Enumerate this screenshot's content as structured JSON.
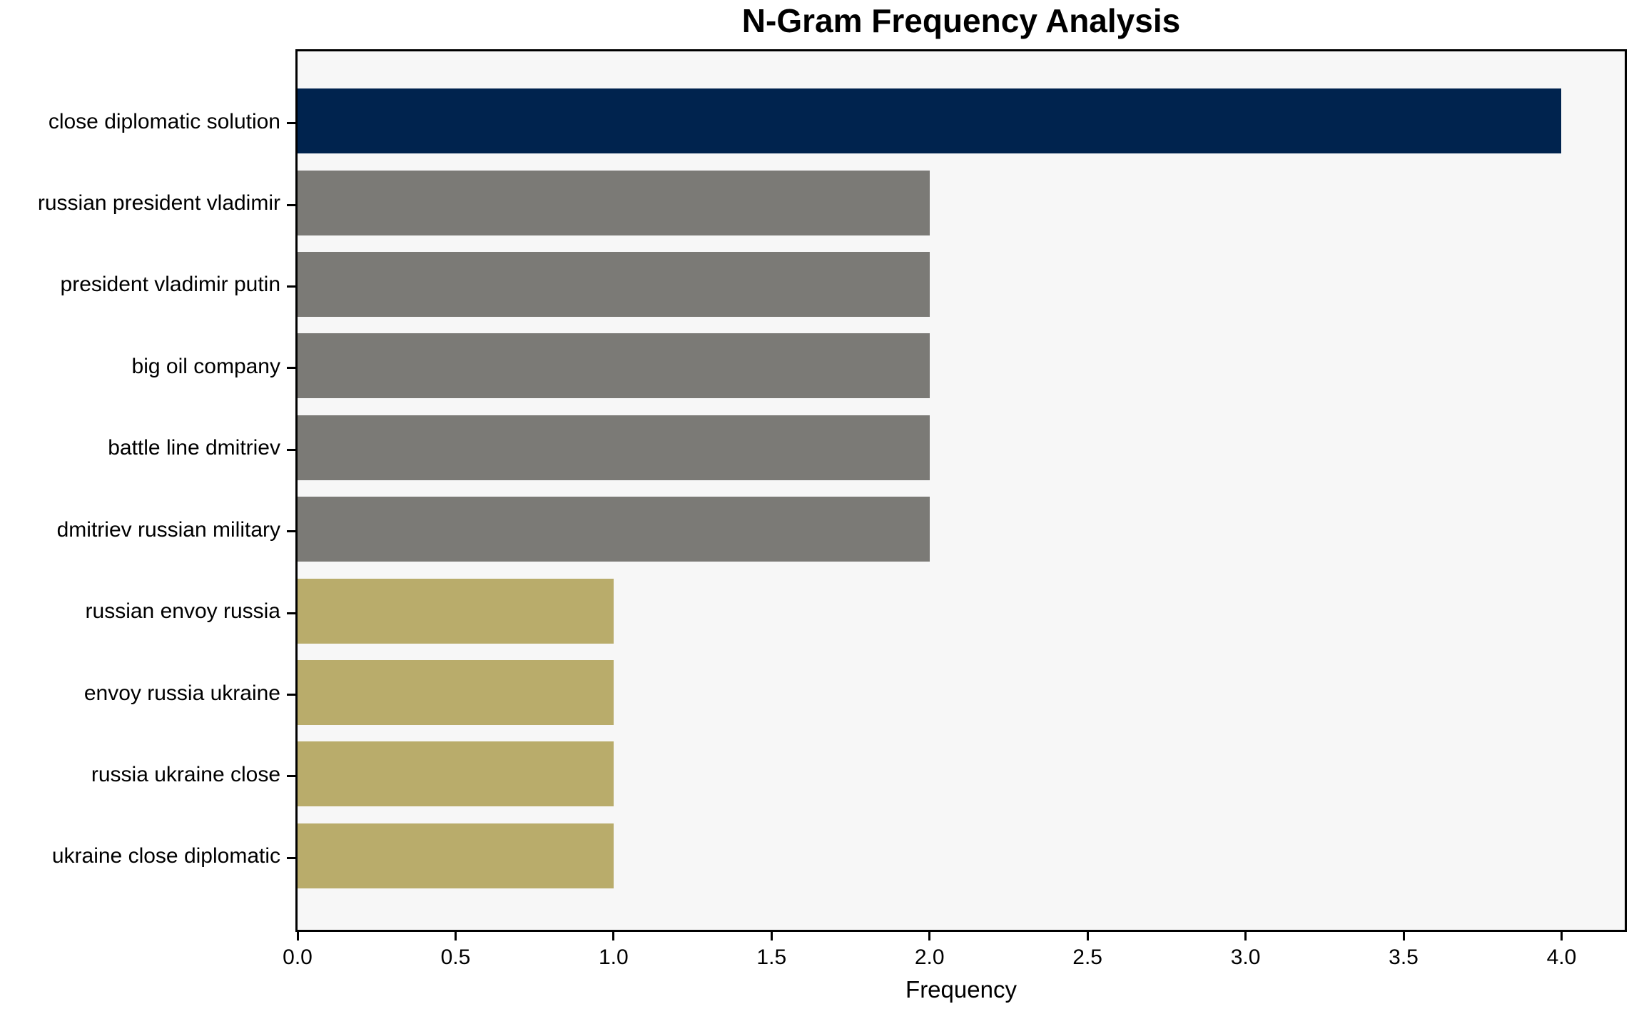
{
  "chart_data": {
    "type": "bar",
    "orientation": "horizontal",
    "title": "N-Gram Frequency Analysis",
    "xlabel": "Frequency",
    "ylabel": "",
    "categories": [
      "close diplomatic solution",
      "russian president vladimir",
      "president vladimir putin",
      "big oil company",
      "battle line dmitriev",
      "dmitriev russian military",
      "russian envoy russia",
      "envoy russia ukraine",
      "russia ukraine close",
      "ukraine close diplomatic"
    ],
    "values": [
      4,
      2,
      2,
      2,
      2,
      2,
      1,
      1,
      1,
      1
    ],
    "bar_colors": [
      "#00234E",
      "#7B7A76",
      "#7B7A76",
      "#7B7A76",
      "#7B7A76",
      "#7B7A76",
      "#B9AC6B",
      "#B9AC6B",
      "#B9AC6B",
      "#B9AC6B"
    ],
    "xlim": [
      0,
      4.2
    ],
    "xticks": [
      0,
      0.5,
      1.0,
      1.5,
      2.0,
      2.5,
      3.0,
      3.5,
      4.0
    ],
    "xtick_labels": [
      "0.0",
      "0.5",
      "1.0",
      "1.5",
      "2.0",
      "2.5",
      "3.0",
      "3.5",
      "4.0"
    ],
    "grid": false,
    "legend": null,
    "plot_background": "#F7F7F7",
    "figure_background": "#FFFFFF",
    "spine_color": "#000000"
  }
}
